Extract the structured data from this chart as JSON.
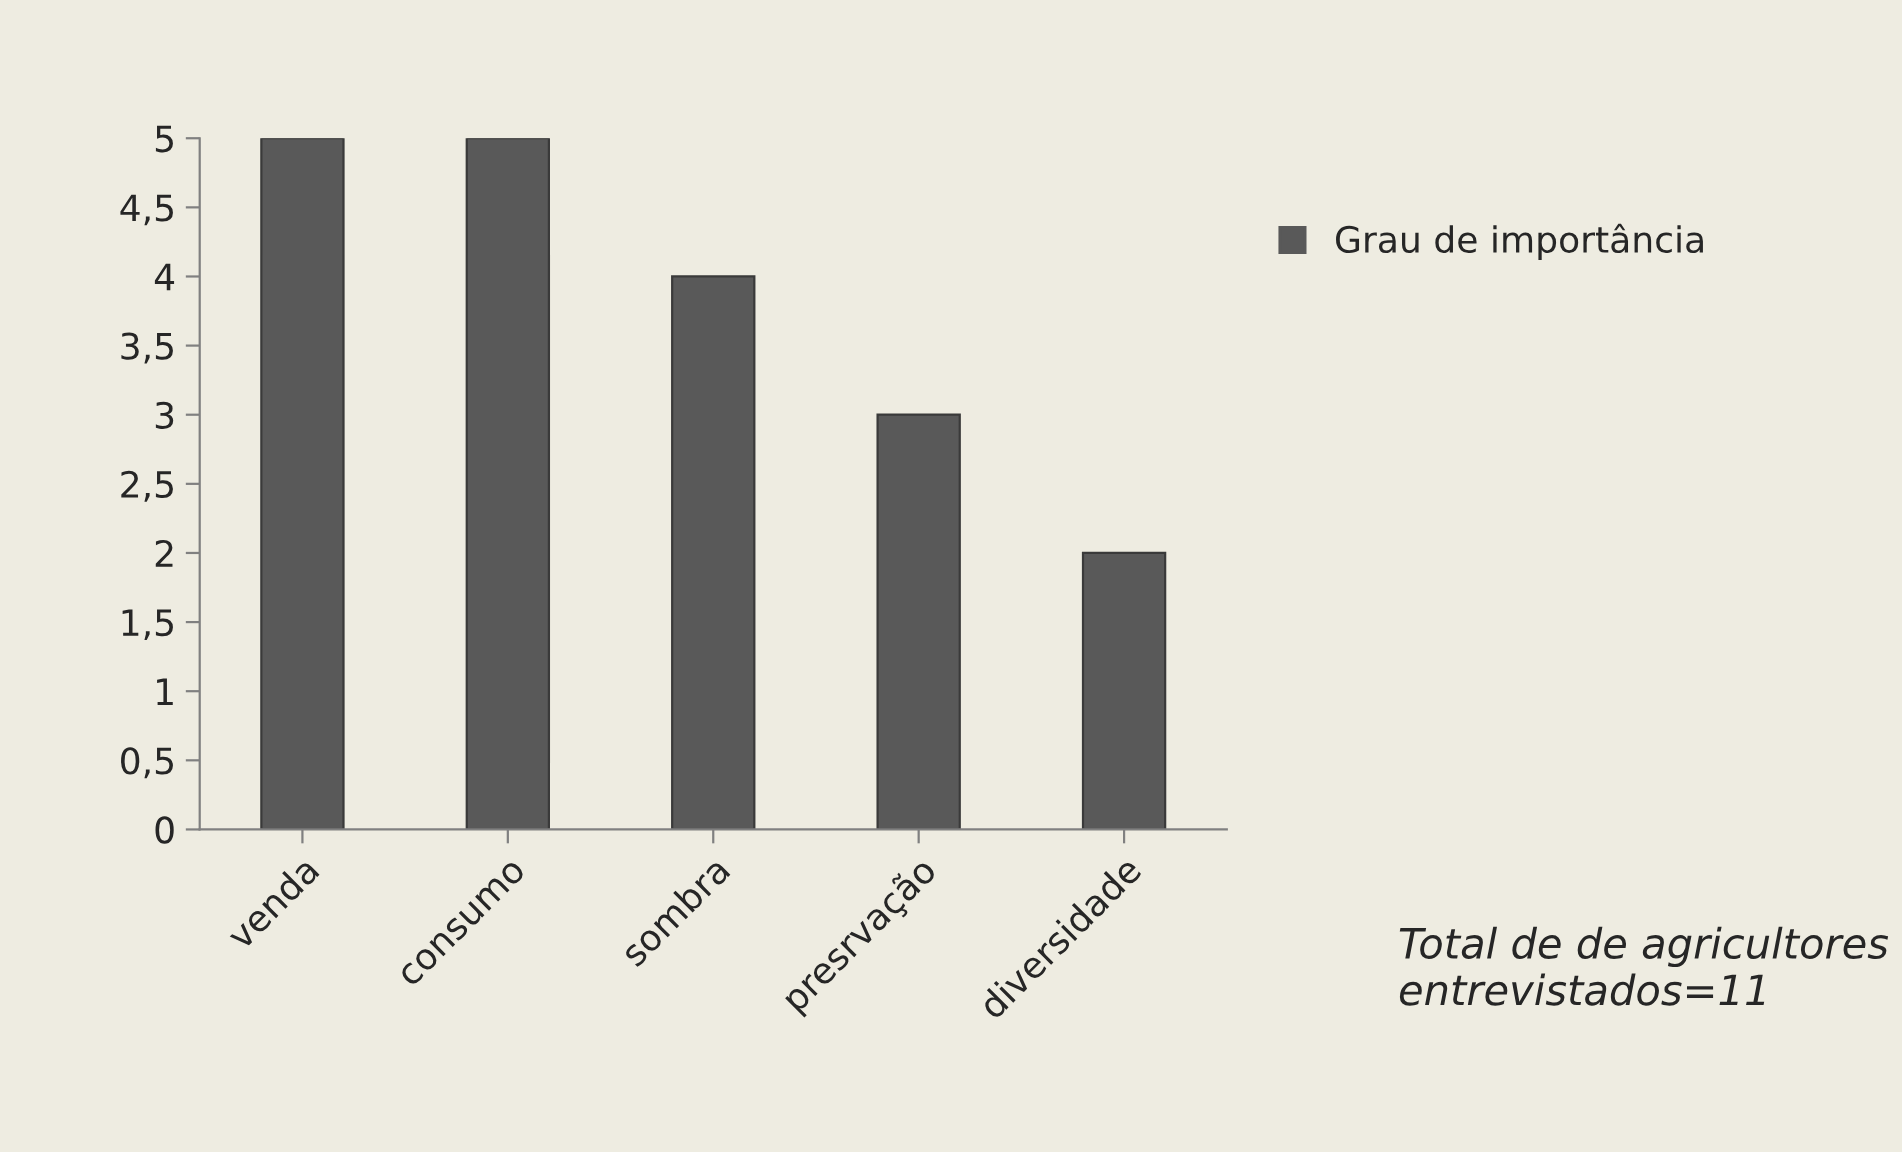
{
  "chart_data": {
    "type": "bar",
    "categories": [
      "venda",
      "consumo",
      "sombra",
      "presrvação",
      "diversidade"
    ],
    "series": [
      {
        "name": "Grau de importância",
        "color": "#595959",
        "values": [
          5,
          5,
          4,
          3,
          2
        ]
      }
    ],
    "ylim": [
      0,
      5
    ],
    "yticks": [
      0,
      {
        "value": 0.5,
        "label": "0,5"
      },
      1,
      {
        "value": 1.5,
        "label": "1,5"
      },
      2,
      {
        "value": 2.5,
        "label": "2,5"
      },
      3,
      {
        "value": 3.5,
        "label": "3,5"
      },
      4,
      {
        "value": 4.5,
        "label": "4,5"
      },
      5
    ],
    "grid": false,
    "legend": "right",
    "annotations": [
      "Total de de agricultores entrevistados=11"
    ]
  }
}
